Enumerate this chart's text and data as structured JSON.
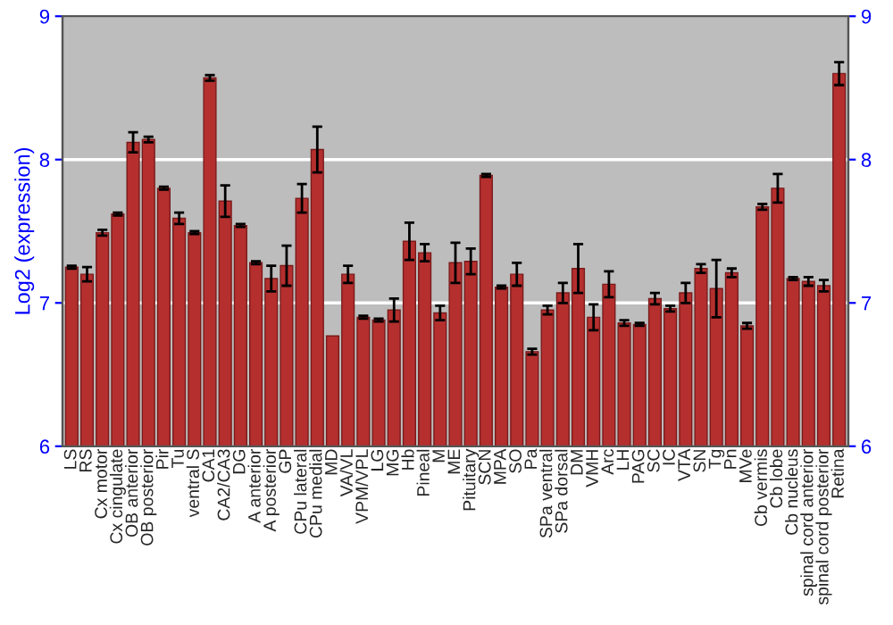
{
  "chart_data": {
    "type": "bar",
    "ylabel": "Log2 (expression)",
    "categories": [
      "LS",
      "RS",
      "Cx motor",
      "Cx cingulate",
      "OB anterior",
      "OB posterior",
      "Pir",
      "Tu",
      "ventral S",
      "CA1",
      "CA2/CA3",
      "DG",
      "A anterior",
      "A posterior",
      "GP",
      "CPu lateral",
      "CPu medial",
      "MD",
      "VA/VL",
      "VPM/VPL",
      "LG",
      "MG",
      "Hb",
      "Pineal",
      "M",
      "ME",
      "Pituitary",
      "SCN",
      "MPA",
      "SO",
      "Pa",
      "SPa ventral",
      "SPa dorsal",
      "DM",
      "VMH",
      "Arc",
      "LH",
      "PAG",
      "SC",
      "IC",
      "VTA",
      "SN",
      "Tg",
      "Pn",
      "MVe",
      "Cb vermis",
      "Cb lobe",
      "Cb nucleus",
      "spinal cord anterior",
      "spinal cord posterior",
      "Retina"
    ],
    "values": [
      7.25,
      7.2,
      7.49,
      7.62,
      8.12,
      8.14,
      7.8,
      7.59,
      7.49,
      8.57,
      7.71,
      7.54,
      7.28,
      7.17,
      7.26,
      7.73,
      8.07,
      6.77,
      7.2,
      6.9,
      6.88,
      6.95,
      7.43,
      7.35,
      6.93,
      7.28,
      7.29,
      7.89,
      7.11,
      7.2,
      6.66,
      6.95,
      7.07,
      7.24,
      6.9,
      7.13,
      6.86,
      6.85,
      7.03,
      6.96,
      7.07,
      7.24,
      7.1,
      7.21,
      6.84,
      7.67,
      7.8,
      7.17,
      7.15,
      7.12,
      8.6
    ],
    "errors": [
      0.01,
      0.05,
      0.02,
      0.01,
      0.07,
      0.02,
      0.01,
      0.04,
      0.01,
      0.02,
      0.11,
      0.01,
      0.01,
      0.09,
      0.14,
      0.1,
      0.16,
      null,
      0.06,
      0.01,
      0.01,
      0.08,
      0.13,
      0.06,
      0.05,
      0.14,
      0.09,
      0.01,
      0.01,
      0.08,
      0.02,
      0.03,
      0.07,
      0.17,
      0.09,
      0.09,
      0.02,
      0.01,
      0.04,
      0.02,
      0.07,
      0.03,
      0.2,
      0.03,
      0.02,
      0.02,
      0.1,
      0.01,
      0.03,
      0.04,
      0.08
    ],
    "color": "#b52f2f",
    "ylim": [
      6,
      9
    ],
    "yticks": [
      6,
      7,
      8,
      9
    ],
    "y2lim": [
      6,
      9
    ],
    "y2ticks": [
      6,
      7,
      8,
      9
    ],
    "grid": "y"
  }
}
